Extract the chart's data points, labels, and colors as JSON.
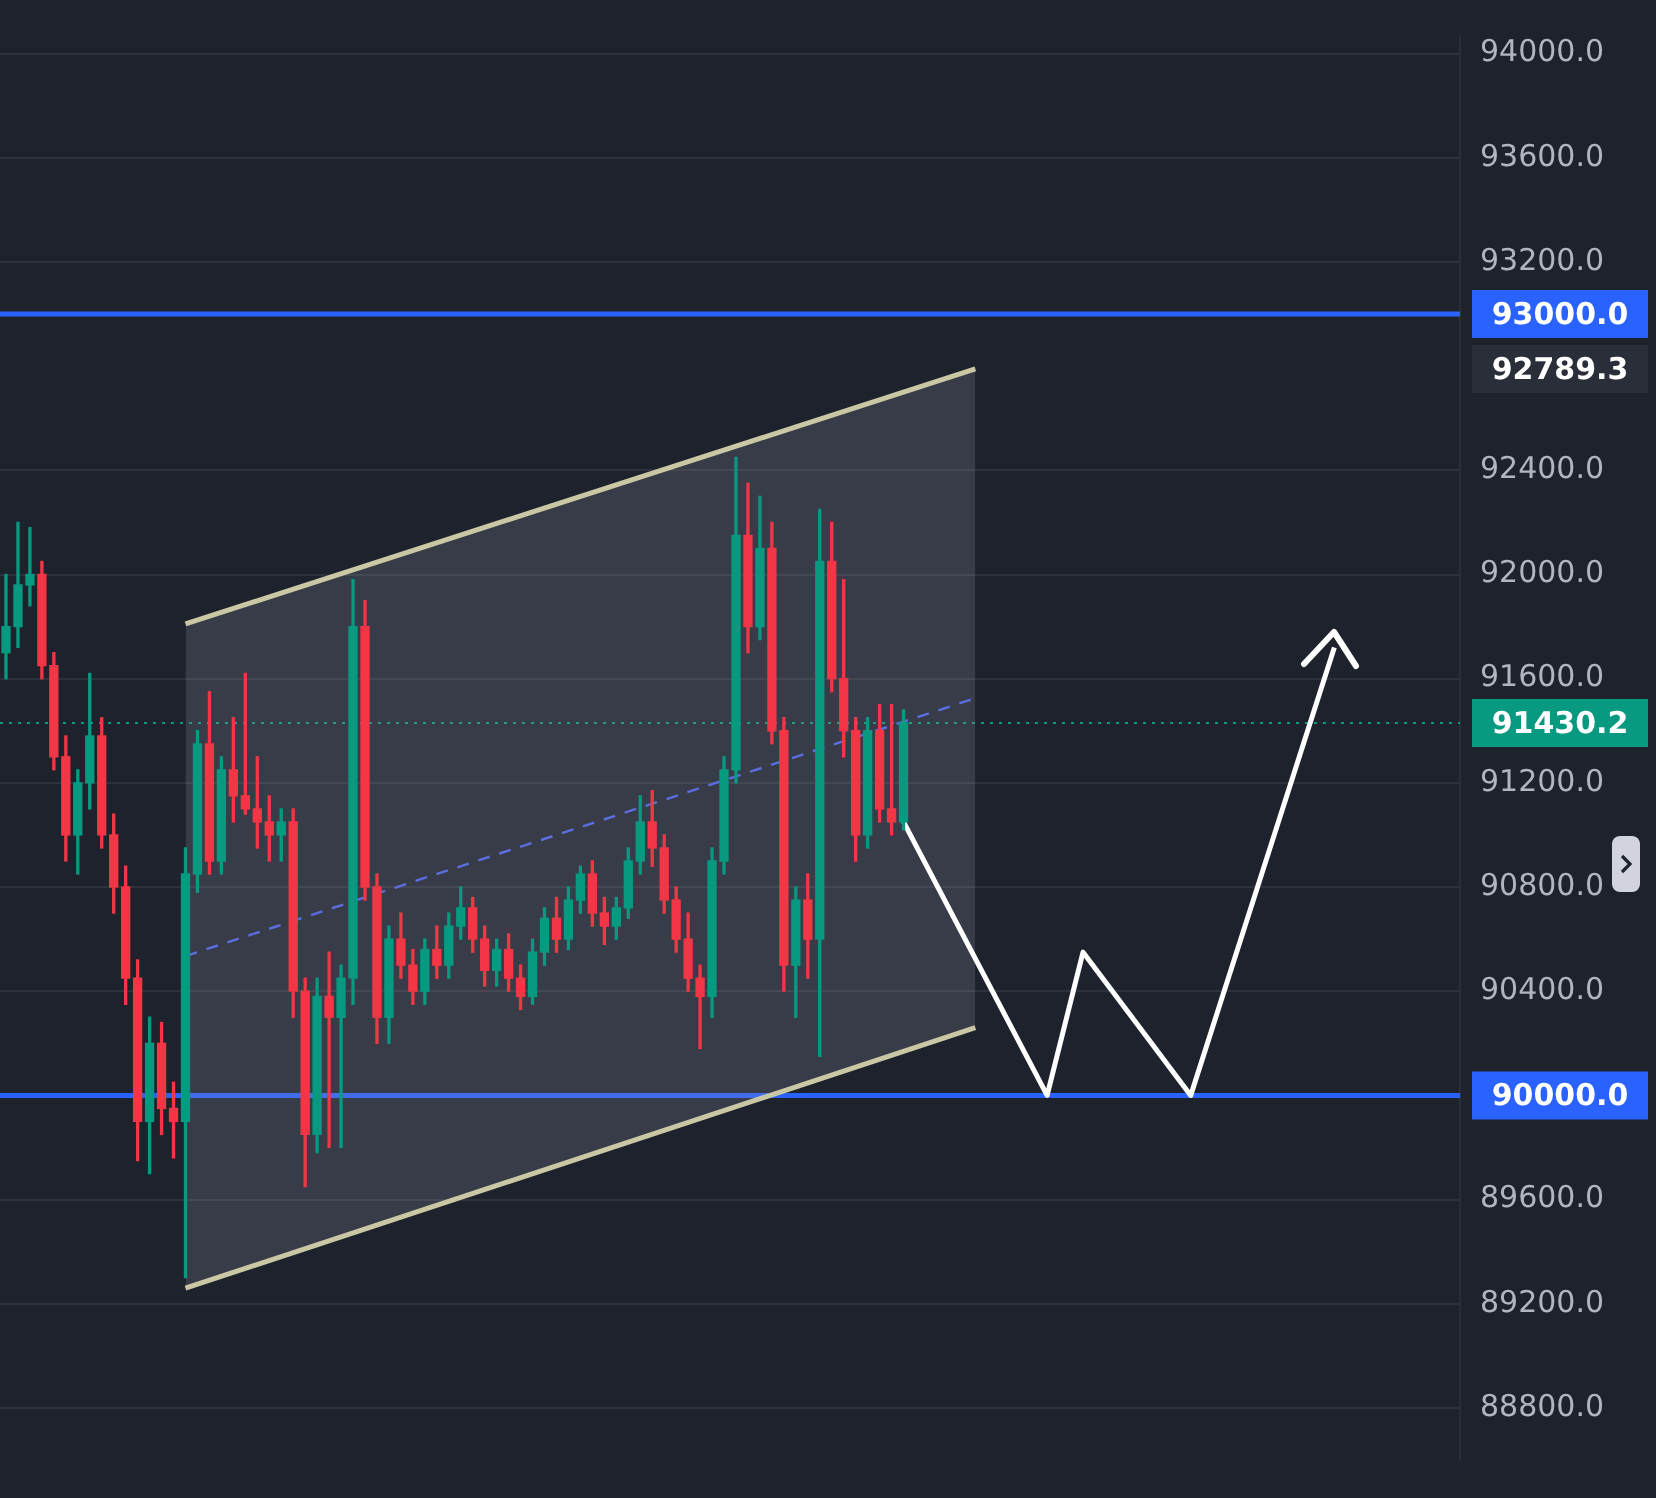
{
  "chart_data": {
    "type": "candlestick",
    "categories": [
      null,
      null,
      null,
      null,
      null,
      null,
      null,
      null,
      null,
      null,
      null,
      null,
      null,
      null,
      null,
      null,
      null,
      null,
      null,
      null,
      null,
      null,
      null,
      null,
      null,
      null,
      null,
      null,
      null,
      null,
      null,
      null,
      null,
      null,
      null,
      null,
      null,
      null,
      null,
      null,
      null,
      null,
      null,
      null,
      null,
      null,
      null,
      null,
      null,
      null,
      null,
      null,
      null,
      null,
      null,
      null,
      null,
      null,
      null,
      null,
      null,
      null,
      null,
      null,
      null,
      null,
      null,
      null,
      null,
      null,
      null,
      null,
      null,
      null,
      null,
      null,
      null,
      null,
      null,
      null,
      null,
      null,
      null,
      null,
      null,
      null,
      null,
      null,
      null,
      null,
      null,
      null,
      null,
      null,
      null,
      null,
      null,
      null,
      null,
      null,
      null,
      null,
      null,
      null,
      null,
      null,
      null,
      null,
      null,
      null,
      null,
      null,
      null,
      null,
      null,
      null,
      null,
      null,
      null,
      null,
      null,
      null
    ],
    "ohlc": [
      [
        91700,
        92000,
        91600,
        91800
      ],
      [
        91800,
        92200,
        91720,
        91960
      ],
      [
        91960,
        92180,
        91880,
        92000
      ],
      [
        92000,
        92050,
        91600,
        91650
      ],
      [
        91650,
        91700,
        91250,
        91300
      ],
      [
        91300,
        91380,
        90900,
        91000
      ],
      [
        91000,
        91250,
        90850,
        91200
      ],
      [
        91200,
        91620,
        91100,
        91380
      ],
      [
        91380,
        91450,
        90950,
        91000
      ],
      [
        91000,
        91080,
        90700,
        90800
      ],
      [
        90800,
        90880,
        90350,
        90450
      ],
      [
        90450,
        90520,
        89750,
        89900
      ],
      [
        89900,
        90300,
        89700,
        90200
      ],
      [
        90200,
        90280,
        89850,
        89950
      ],
      [
        89950,
        90050,
        89760,
        89900
      ],
      [
        89900,
        90950,
        89300,
        90850
      ],
      [
        90850,
        91400,
        90780,
        91350
      ],
      [
        91350,
        91550,
        90850,
        90900
      ],
      [
        90900,
        91300,
        90850,
        91250
      ],
      [
        91250,
        91450,
        91050,
        91150
      ],
      [
        91150,
        91620,
        91080,
        91100
      ],
      [
        91100,
        91300,
        90950,
        91050
      ],
      [
        91050,
        91150,
        90900,
        91000
      ],
      [
        91000,
        91100,
        90900,
        91050
      ],
      [
        91050,
        91100,
        90300,
        90400
      ],
      [
        90400,
        90450,
        89650,
        89850
      ],
      [
        89850,
        90450,
        89780,
        90380
      ],
      [
        90380,
        90550,
        89800,
        90300
      ],
      [
        90300,
        90500,
        89800,
        90450
      ],
      [
        90450,
        91980,
        90350,
        91800
      ],
      [
        91800,
        91900,
        90750,
        90800
      ],
      [
        90800,
        90850,
        90200,
        90300
      ],
      [
        90300,
        90650,
        90200,
        90600
      ],
      [
        90600,
        90700,
        90450,
        90500
      ],
      [
        90500,
        90560,
        90350,
        90400
      ],
      [
        90400,
        90600,
        90350,
        90560
      ],
      [
        90560,
        90650,
        90450,
        90500
      ],
      [
        90500,
        90700,
        90450,
        90650
      ],
      [
        90650,
        90800,
        90600,
        90720
      ],
      [
        90720,
        90760,
        90550,
        90600
      ],
      [
        90600,
        90650,
        90420,
        90480
      ],
      [
        90480,
        90600,
        90420,
        90560
      ],
      [
        90560,
        90620,
        90400,
        90450
      ],
      [
        90450,
        90500,
        90330,
        90380
      ],
      [
        90380,
        90600,
        90350,
        90550
      ],
      [
        90550,
        90720,
        90500,
        90680
      ],
      [
        90680,
        90760,
        90550,
        90600
      ],
      [
        90600,
        90800,
        90560,
        90750
      ],
      [
        90750,
        90880,
        90700,
        90850
      ],
      [
        90850,
        90900,
        90650,
        90700
      ],
      [
        90700,
        90760,
        90580,
        90650
      ],
      [
        90650,
        90760,
        90600,
        90720
      ],
      [
        90720,
        90950,
        90680,
        90900
      ],
      [
        90900,
        91150,
        90850,
        91050
      ],
      [
        91050,
        91170,
        90880,
        90950
      ],
      [
        90950,
        91000,
        90700,
        90750
      ],
      [
        90750,
        90800,
        90550,
        90600
      ],
      [
        90600,
        90700,
        90400,
        90450
      ],
      [
        90450,
        90500,
        90180,
        90380
      ],
      [
        90380,
        90950,
        90300,
        90900
      ],
      [
        90900,
        91300,
        90850,
        91250
      ],
      [
        91250,
        92450,
        91200,
        92150
      ],
      [
        92150,
        92350,
        91700,
        91800
      ],
      [
        91800,
        92300,
        91750,
        92100
      ],
      [
        92100,
        92200,
        91350,
        91400
      ],
      [
        91400,
        91450,
        90400,
        90500
      ],
      [
        90500,
        90800,
        90300,
        90750
      ],
      [
        90750,
        90850,
        90450,
        90600
      ],
      [
        90600,
        92250,
        90150,
        92050
      ],
      [
        92050,
        92200,
        91550,
        91600
      ],
      [
        91600,
        91980,
        91300,
        91400
      ],
      [
        91400,
        91450,
        90900,
        91000
      ],
      [
        91000,
        91450,
        90950,
        91400
      ],
      [
        91400,
        91500,
        91050,
        91100
      ],
      [
        91100,
        91500,
        91000,
        91050
      ],
      [
        91050,
        91480,
        91020,
        91430
      ],
      null,
      null,
      null,
      null,
      null,
      null,
      null,
      null,
      null,
      null,
      null,
      null,
      null,
      null,
      null,
      null,
      null,
      null,
      null,
      null,
      null,
      null,
      null,
      null,
      null,
      null,
      null,
      null,
      null,
      null,
      null,
      null,
      null,
      null,
      null,
      null,
      null,
      null,
      null,
      null,
      null,
      null,
      null,
      null,
      null,
      null
    ],
    "colors": [
      "#089981",
      "#089981",
      "#089981",
      "#f23645",
      "#f23645",
      "#f23645",
      "#089981",
      "#089981",
      "#f23645",
      "#f23645",
      "#f23645",
      "#f23645",
      "#089981",
      "#f23645",
      "#f23645",
      "#089981",
      "#089981",
      "#f23645",
      "#089981",
      "#f23645",
      "#f23645",
      "#f23645",
      "#f23645",
      "#089981",
      "#f23645",
      "#f23645",
      "#089981",
      "#f23645",
      "#089981",
      "#089981",
      "#f23645",
      "#f23645",
      "#089981",
      "#f23645",
      "#f23645",
      "#089981",
      "#f23645",
      "#089981",
      "#089981",
      "#f23645",
      "#f23645",
      "#089981",
      "#f23645",
      "#f23645",
      "#089981",
      "#089981",
      "#f23645",
      "#089981",
      "#089981",
      "#f23645",
      "#f23645",
      "#089981",
      "#089981",
      "#089981",
      "#f23645",
      "#f23645",
      "#f23645",
      "#f23645",
      "#f23645",
      "#089981",
      "#089981",
      "#089981",
      "#f23645",
      "#089981",
      "#f23645",
      "#f23645",
      "#089981",
      "#f23645",
      "#089981",
      "#f23645",
      "#f23645",
      "#f23645",
      "#089981",
      "#f23645",
      "#f23645",
      "#089981",
      null,
      null,
      null,
      null,
      null,
      null,
      null,
      null,
      null,
      null,
      null,
      null,
      null,
      null,
      null,
      null,
      null,
      null,
      null,
      null,
      null,
      null,
      null,
      null,
      null,
      null,
      null,
      null,
      null,
      null,
      null,
      null,
      null,
      null,
      null,
      null,
      null,
      null,
      null,
      null,
      null,
      null,
      null,
      null,
      null,
      null
    ],
    "series": [
      {
        "type": "line",
        "color": "#c9c7a4",
        "values": [
          null,
          null,
          null,
          null,
          null,
          null,
          null,
          null,
          null,
          null,
          null,
          null,
          null,
          null,
          null,
          91810,
          null,
          null,
          null,
          null,
          null,
          null,
          null,
          null,
          null,
          null,
          null,
          null,
          null,
          null,
          null,
          null,
          null,
          null,
          null,
          null,
          null,
          null,
          null,
          null,
          null,
          null,
          null,
          null,
          null,
          null,
          null,
          null,
          null,
          null,
          null,
          null,
          null,
          null,
          null,
          null,
          null,
          null,
          null,
          null,
          null,
          null,
          null,
          null,
          null,
          null,
          null,
          null,
          null,
          null,
          null,
          null,
          null,
          null,
          null,
          null,
          null,
          null,
          null,
          null,
          null,
          92789.3,
          null,
          null,
          null,
          null,
          null,
          null,
          null,
          null,
          null,
          null,
          null,
          null,
          null,
          null,
          null,
          null,
          null,
          null,
          null,
          null,
          null,
          null,
          null,
          null,
          null,
          null,
          null,
          null,
          null,
          null,
          null,
          null,
          null,
          null,
          null,
          null,
          null,
          null,
          null,
          null
        ]
      },
      {
        "type": "line",
        "color": "#c9c7a4",
        "values": [
          null,
          null,
          null,
          null,
          null,
          null,
          null,
          null,
          null,
          null,
          null,
          null,
          null,
          null,
          null,
          89260,
          null,
          null,
          null,
          null,
          null,
          null,
          null,
          null,
          null,
          null,
          null,
          null,
          null,
          null,
          null,
          null,
          null,
          null,
          null,
          null,
          null,
          null,
          null,
          null,
          null,
          null,
          null,
          null,
          null,
          null,
          null,
          null,
          null,
          null,
          null,
          null,
          null,
          null,
          null,
          null,
          null,
          null,
          null,
          null,
          null,
          null,
          null,
          null,
          null,
          null,
          null,
          null,
          null,
          null,
          null,
          null,
          null,
          null,
          null,
          null,
          null,
          null,
          null,
          null,
          null,
          90260,
          null,
          null,
          null,
          null,
          null,
          null,
          null,
          null,
          null,
          null,
          null,
          null,
          null,
          null,
          null,
          null,
          null,
          null,
          null,
          null,
          null,
          null,
          null,
          null,
          null,
          null,
          null,
          null,
          null,
          null,
          null,
          null,
          null,
          null,
          null,
          null,
          null,
          null,
          null,
          null
        ]
      },
      {
        "type": "line",
        "color": "#ffffff",
        "values": [
          null,
          null,
          null,
          null,
          null,
          null,
          null,
          null,
          null,
          null,
          null,
          null,
          null,
          null,
          null,
          null,
          null,
          null,
          null,
          null,
          null,
          null,
          null,
          null,
          null,
          null,
          null,
          null,
          null,
          null,
          null,
          null,
          null,
          null,
          null,
          null,
          null,
          null,
          null,
          null,
          null,
          null,
          null,
          null,
          null,
          null,
          null,
          null,
          null,
          null,
          null,
          null,
          null,
          null,
          null,
          null,
          null,
          null,
          null,
          null,
          null,
          null,
          null,
          null,
          null,
          null,
          null,
          null,
          null,
          null,
          null,
          null,
          null,
          null,
          null,
          91050,
          null,
          null,
          null,
          null,
          null,
          null,
          null,
          null,
          null,
          null,
          null,
          90000,
          null,
          null,
          90550,
          null,
          null,
          null,
          null,
          null,
          null,
          null,
          null,
          90000,
          null,
          null,
          null,
          null,
          null,
          null,
          null,
          null,
          null,
          null,
          null,
          91720,
          null,
          null,
          null,
          null,
          null,
          null,
          null,
          null,
          null,
          null
        ]
      },
      {
        "type": "line",
        "color": "#5b6ee1",
        "line_style": "dashed",
        "values": [
          null,
          null,
          null,
          null,
          null,
          null,
          null,
          null,
          null,
          null,
          null,
          null,
          null,
          null,
          null,
          90535,
          null,
          null,
          null,
          null,
          null,
          null,
          null,
          null,
          null,
          null,
          null,
          null,
          null,
          null,
          null,
          null,
          null,
          null,
          null,
          null,
          null,
          null,
          null,
          null,
          null,
          null,
          null,
          null,
          null,
          null,
          null,
          null,
          null,
          null,
          null,
          null,
          null,
          null,
          null,
          null,
          null,
          null,
          null,
          null,
          null,
          null,
          null,
          null,
          null,
          null,
          null,
          null,
          null,
          null,
          null,
          null,
          null,
          null,
          null,
          null,
          null,
          null,
          null,
          null,
          null,
          91525,
          null,
          null,
          null,
          null,
          null,
          null,
          null,
          null,
          null,
          null,
          null,
          null,
          null,
          null,
          null,
          null,
          null,
          null,
          null,
          null,
          null,
          null,
          null,
          null,
          null,
          null,
          null,
          null,
          null,
          null,
          null,
          null,
          null,
          null,
          null,
          null,
          null,
          null,
          null,
          null
        ],
        "lower": [
          null,
          null,
          null,
          null,
          null,
          null,
          null,
          null,
          null,
          null,
          null,
          null,
          null,
          null,
          null,
          89260,
          null,
          null,
          null,
          null,
          null,
          null,
          null,
          null,
          null,
          null,
          null,
          null,
          null,
          null,
          null,
          null,
          null,
          null,
          null,
          null,
          null,
          null,
          null,
          null,
          null,
          null,
          null,
          null,
          null,
          null,
          null,
          null,
          null,
          null,
          null,
          null,
          null,
          null,
          null,
          null,
          null,
          null,
          null,
          null,
          null,
          null,
          null,
          null,
          null,
          null,
          null,
          null,
          null,
          null,
          null,
          null,
          null,
          null,
          null,
          null,
          null,
          null,
          null,
          null,
          null,
          90260,
          null,
          null,
          null,
          null,
          null,
          null,
          null,
          null,
          null,
          null,
          null,
          null,
          null,
          null,
          null,
          null,
          null,
          null,
          null,
          null,
          null,
          null,
          null,
          null,
          null,
          null,
          null,
          null,
          null,
          null,
          null,
          null,
          null,
          null,
          null,
          null,
          null,
          null,
          null,
          null
        ],
        "upper": [
          null,
          null,
          null,
          null,
          null,
          null,
          null,
          null,
          null,
          null,
          null,
          null,
          null,
          null,
          null,
          91810,
          null,
          null,
          null,
          null,
          null,
          null,
          null,
          null,
          null,
          null,
          null,
          null,
          null,
          null,
          null,
          null,
          null,
          null,
          null,
          null,
          null,
          null,
          null,
          null,
          null,
          null,
          null,
          null,
          null,
          null,
          null,
          null,
          null,
          null,
          null,
          null,
          null,
          null,
          null,
          null,
          null,
          null,
          null,
          null,
          null,
          null,
          null,
          null,
          null,
          null,
          null,
          null,
          null,
          null,
          null,
          null,
          null,
          null,
          null,
          null,
          null,
          null,
          null,
          null,
          null,
          92789.3,
          null,
          null,
          null,
          null,
          null,
          null,
          null,
          null,
          null,
          null,
          null,
          null,
          null,
          null,
          null,
          null,
          null,
          null,
          null,
          null,
          null,
          null,
          null,
          null,
          null,
          null,
          null,
          null,
          null,
          null,
          null,
          null,
          null,
          null,
          null,
          null,
          null,
          null,
          null,
          null
        ]
      }
    ],
    "ylim": [
      88600,
      94060
    ],
    "yticks": [
      {
        "value": 88800,
        "label": "88800.0"
      },
      {
        "value": 89200,
        "label": "89200.0"
      },
      {
        "value": 89600,
        "label": "89600.0"
      },
      {
        "value": 90400,
        "label": "90400.0"
      },
      {
        "value": 90800,
        "label": "90800.0"
      },
      {
        "value": 91200,
        "label": "91200.0"
      },
      {
        "value": 91600,
        "label": "91600.0"
      },
      {
        "value": 92000,
        "label": "92000.0"
      },
      {
        "value": 92400,
        "label": "92400.0"
      },
      {
        "value": 93200,
        "label": "93200.0"
      },
      {
        "value": 93600,
        "label": "93600.0"
      },
      {
        "value": 94000,
        "label": "94000.0"
      }
    ],
    "ref_lines": [
      {
        "axis": "y",
        "value": 93000,
        "label": "93000.0",
        "color": "#2962ff"
      },
      {
        "axis": "y",
        "value": 90000,
        "label": "90000.0",
        "color": "#2962ff"
      },
      {
        "axis": "y",
        "value": 91430.2,
        "label": "91430.2",
        "color": "#089981",
        "line_style": "dotted"
      }
    ],
    "annotations": [
      "92789.3"
    ],
    "grid": "y",
    "tick_labels": "y",
    "legend": false
  }
}
